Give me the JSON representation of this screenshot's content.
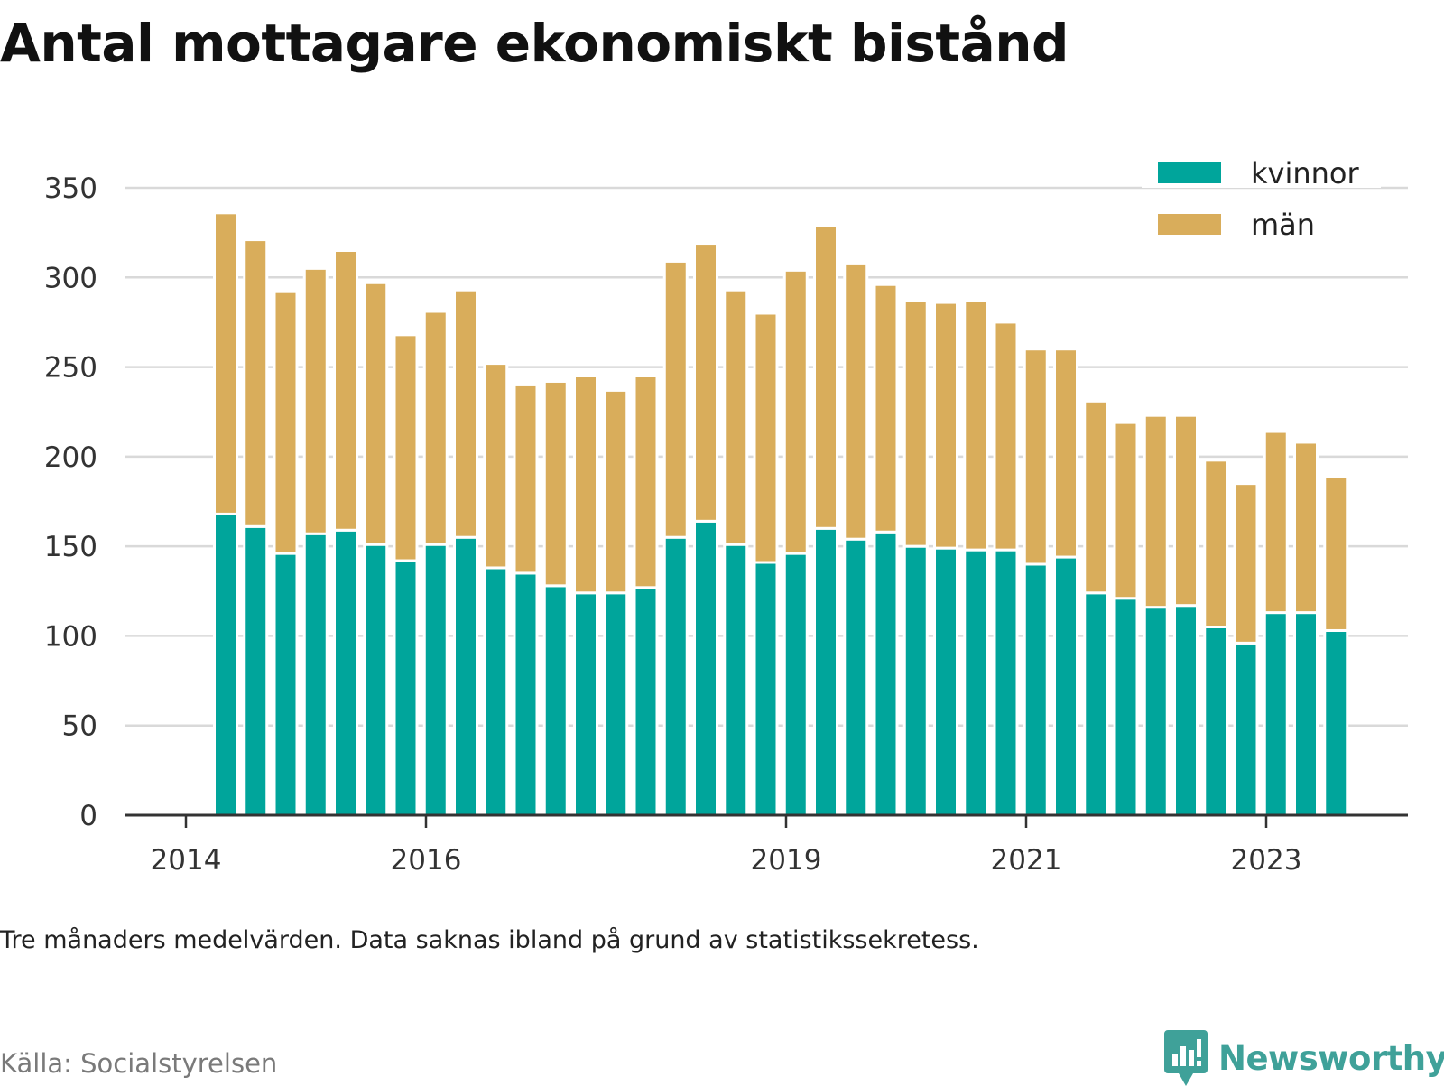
{
  "title": "Antal mottagare ekonomiskt bistånd",
  "note": "Tre månaders medelvärden. Data saknas ibland på grund av statistikssekretess.",
  "source": "Källa: Socialstyrelsen",
  "brand": "Newsworthy",
  "colors": {
    "kvinnor": "#00a59b",
    "man": "#d9ad5b",
    "grid": "#d9d9d9",
    "axis": "#333333",
    "brand": "#3fa199"
  },
  "chart_data": {
    "type": "bar",
    "stacked": true,
    "ylim": [
      0,
      350
    ],
    "yticks": [
      0,
      50,
      100,
      150,
      200,
      250,
      300,
      350
    ],
    "xtick_labels": [
      "2014",
      "2016",
      "2019",
      "2021",
      "2023"
    ],
    "grid": true,
    "legend_position": "top-right",
    "series": [
      {
        "name": "kvinnor",
        "values": [
          168,
          161,
          146,
          157,
          159,
          151,
          142,
          151,
          155,
          138,
          135,
          128,
          124,
          124,
          127,
          155,
          164,
          151,
          141,
          146,
          160,
          154,
          158,
          150,
          149,
          148,
          148,
          140,
          144,
          124,
          121,
          116,
          117,
          105,
          96,
          113,
          113,
          103
        ]
      },
      {
        "name": "män",
        "values": [
          168,
          160,
          146,
          148,
          156,
          146,
          126,
          130,
          138,
          114,
          105,
          114,
          121,
          113,
          118,
          154,
          155,
          142,
          139,
          158,
          169,
          154,
          138,
          137,
          137,
          139,
          127,
          120,
          116,
          107,
          98,
          107,
          106,
          93,
          89,
          101,
          95,
          86
        ]
      }
    ]
  }
}
